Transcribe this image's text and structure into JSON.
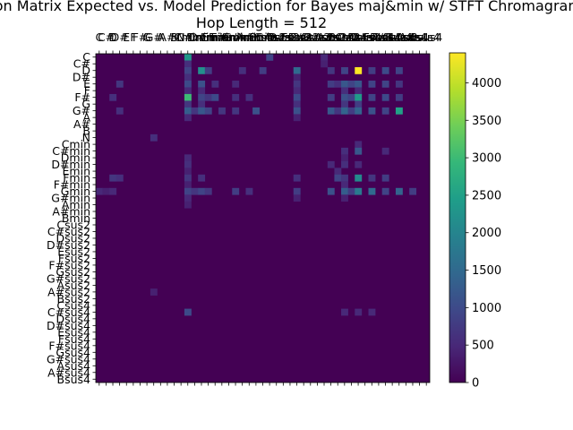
{
  "chart_data": {
    "type": "heatmap",
    "title_line1": "Confusion Matrix Expected vs. Model Prediction for Bayes maj&min w/ STFT Chromagram",
    "title_line2": "Hop Length = 512",
    "labels": [
      "C",
      "C#",
      "D",
      "D#",
      "E",
      "F",
      "F#",
      "G",
      "G#",
      "A",
      "A#",
      "B",
      "N",
      "Cmin",
      "C#min",
      "Dmin",
      "D#min",
      "Emin",
      "Fmin",
      "F#min",
      "Gmin",
      "G#min",
      "Amin",
      "A#min",
      "Bmin",
      "Csus2",
      "C#sus2",
      "Dsus2",
      "D#sus2",
      "Esus2",
      "Fsus2",
      "F#sus2",
      "Gsus2",
      "G#sus2",
      "Asus2",
      "A#sus2",
      "Bsus2",
      "Csus4",
      "C#sus4",
      "Dsus4",
      "D#sus4",
      "Esus4",
      "Fsus4",
      "F#sus4",
      "Gsus4",
      "G#sus4",
      "Asus4",
      "A#sus4",
      "Bsus4"
    ],
    "colorbar": {
      "min": 0,
      "max": 4400,
      "ticks": [
        0,
        500,
        1000,
        1500,
        2000,
        2500,
        3000,
        3500,
        4000
      ]
    },
    "colormap": [
      "#440154",
      "#482878",
      "#3e4989",
      "#31688e",
      "#26828e",
      "#1f9e89",
      "#35b779",
      "#6ece58",
      "#b5de2b",
      "#fde725"
    ],
    "cells": [
      {
        "r": 0,
        "c": 13,
        "v": 2300
      },
      {
        "r": 0,
        "c": 25,
        "v": 900
      },
      {
        "r": 0,
        "c": 33,
        "v": 500
      },
      {
        "r": 1,
        "c": 13,
        "v": 600
      },
      {
        "r": 1,
        "c": 33,
        "v": 400
      },
      {
        "r": 2,
        "c": 13,
        "v": 900
      },
      {
        "r": 2,
        "c": 15,
        "v": 2200
      },
      {
        "r": 2,
        "c": 16,
        "v": 800
      },
      {
        "r": 2,
        "c": 21,
        "v": 600
      },
      {
        "r": 2,
        "c": 24,
        "v": 800
      },
      {
        "r": 2,
        "c": 29,
        "v": 1500
      },
      {
        "r": 2,
        "c": 34,
        "v": 700
      },
      {
        "r": 2,
        "c": 36,
        "v": 900
      },
      {
        "r": 2,
        "c": 38,
        "v": 4400
      },
      {
        "r": 2,
        "c": 40,
        "v": 800
      },
      {
        "r": 2,
        "c": 42,
        "v": 1000
      },
      {
        "r": 2,
        "c": 44,
        "v": 900
      },
      {
        "r": 3,
        "c": 13,
        "v": 600
      },
      {
        "r": 3,
        "c": 29,
        "v": 400
      },
      {
        "r": 4,
        "c": 3,
        "v": 700
      },
      {
        "r": 4,
        "c": 13,
        "v": 1000
      },
      {
        "r": 4,
        "c": 15,
        "v": 1100
      },
      {
        "r": 4,
        "c": 17,
        "v": 600
      },
      {
        "r": 4,
        "c": 20,
        "v": 500
      },
      {
        "r": 4,
        "c": 29,
        "v": 700
      },
      {
        "r": 4,
        "c": 34,
        "v": 800
      },
      {
        "r": 4,
        "c": 35,
        "v": 600
      },
      {
        "r": 4,
        "c": 36,
        "v": 1200
      },
      {
        "r": 4,
        "c": 37,
        "v": 900
      },
      {
        "r": 4,
        "c": 38,
        "v": 1200
      },
      {
        "r": 4,
        "c": 40,
        "v": 900
      },
      {
        "r": 4,
        "c": 42,
        "v": 900
      },
      {
        "r": 4,
        "c": 44,
        "v": 700
      },
      {
        "r": 5,
        "c": 13,
        "v": 500
      },
      {
        "r": 5,
        "c": 15,
        "v": 500
      },
      {
        "r": 5,
        "c": 29,
        "v": 500
      },
      {
        "r": 5,
        "c": 36,
        "v": 600
      },
      {
        "r": 5,
        "c": 38,
        "v": 500
      },
      {
        "r": 6,
        "c": 2,
        "v": 600
      },
      {
        "r": 6,
        "c": 13,
        "v": 3000
      },
      {
        "r": 6,
        "c": 15,
        "v": 900
      },
      {
        "r": 6,
        "c": 16,
        "v": 700
      },
      {
        "r": 6,
        "c": 17,
        "v": 1000
      },
      {
        "r": 6,
        "c": 20,
        "v": 600
      },
      {
        "r": 6,
        "c": 22,
        "v": 600
      },
      {
        "r": 6,
        "c": 29,
        "v": 1000
      },
      {
        "r": 6,
        "c": 34,
        "v": 800
      },
      {
        "r": 6,
        "c": 36,
        "v": 1100
      },
      {
        "r": 6,
        "c": 37,
        "v": 900
      },
      {
        "r": 6,
        "c": 38,
        "v": 2400
      },
      {
        "r": 6,
        "c": 40,
        "v": 900
      },
      {
        "r": 6,
        "c": 42,
        "v": 1000
      },
      {
        "r": 6,
        "c": 44,
        "v": 800
      },
      {
        "r": 7,
        "c": 13,
        "v": 700
      },
      {
        "r": 7,
        "c": 15,
        "v": 600
      },
      {
        "r": 7,
        "c": 29,
        "v": 600
      },
      {
        "r": 7,
        "c": 36,
        "v": 700
      },
      {
        "r": 7,
        "c": 38,
        "v": 800
      },
      {
        "r": 8,
        "c": 3,
        "v": 600
      },
      {
        "r": 8,
        "c": 13,
        "v": 1300
      },
      {
        "r": 8,
        "c": 14,
        "v": 700
      },
      {
        "r": 8,
        "c": 15,
        "v": 1200
      },
      {
        "r": 8,
        "c": 16,
        "v": 900
      },
      {
        "r": 8,
        "c": 18,
        "v": 700
      },
      {
        "r": 8,
        "c": 20,
        "v": 700
      },
      {
        "r": 8,
        "c": 23,
        "v": 1100
      },
      {
        "r": 8,
        "c": 29,
        "v": 1100
      },
      {
        "r": 8,
        "c": 34,
        "v": 1200
      },
      {
        "r": 8,
        "c": 35,
        "v": 700
      },
      {
        "r": 8,
        "c": 36,
        "v": 1400
      },
      {
        "r": 8,
        "c": 37,
        "v": 800
      },
      {
        "r": 8,
        "c": 38,
        "v": 1400
      },
      {
        "r": 8,
        "c": 40,
        "v": 1100
      },
      {
        "r": 8,
        "c": 42,
        "v": 900
      },
      {
        "r": 8,
        "c": 44,
        "v": 2500
      },
      {
        "r": 9,
        "c": 13,
        "v": 500
      },
      {
        "r": 9,
        "c": 29,
        "v": 400
      },
      {
        "r": 12,
        "c": 8,
        "v": 600
      },
      {
        "r": 13,
        "c": 38,
        "v": 500
      },
      {
        "r": 14,
        "c": 36,
        "v": 600
      },
      {
        "r": 14,
        "c": 38,
        "v": 1200
      },
      {
        "r": 14,
        "c": 42,
        "v": 500
      },
      {
        "r": 15,
        "c": 13,
        "v": 500
      },
      {
        "r": 15,
        "c": 36,
        "v": 400
      },
      {
        "r": 16,
        "c": 13,
        "v": 600
      },
      {
        "r": 16,
        "c": 34,
        "v": 500
      },
      {
        "r": 16,
        "c": 36,
        "v": 600
      },
      {
        "r": 16,
        "c": 38,
        "v": 500
      },
      {
        "r": 17,
        "c": 13,
        "v": 400
      },
      {
        "r": 17,
        "c": 35,
        "v": 500
      },
      {
        "r": 18,
        "c": 2,
        "v": 700
      },
      {
        "r": 18,
        "c": 3,
        "v": 600
      },
      {
        "r": 18,
        "c": 13,
        "v": 700
      },
      {
        "r": 18,
        "c": 15,
        "v": 600
      },
      {
        "r": 18,
        "c": 29,
        "v": 600
      },
      {
        "r": 18,
        "c": 35,
        "v": 900
      },
      {
        "r": 18,
        "c": 36,
        "v": 700
      },
      {
        "r": 18,
        "c": 38,
        "v": 2100
      },
      {
        "r": 18,
        "c": 40,
        "v": 700
      },
      {
        "r": 18,
        "c": 42,
        "v": 800
      },
      {
        "r": 19,
        "c": 13,
        "v": 400
      },
      {
        "r": 19,
        "c": 36,
        "v": 500
      },
      {
        "r": 20,
        "c": 0,
        "v": 500
      },
      {
        "r": 20,
        "c": 1,
        "v": 400
      },
      {
        "r": 20,
        "c": 2,
        "v": 500
      },
      {
        "r": 20,
        "c": 13,
        "v": 900
      },
      {
        "r": 20,
        "c": 14,
        "v": 700
      },
      {
        "r": 20,
        "c": 15,
        "v": 900
      },
      {
        "r": 20,
        "c": 16,
        "v": 700
      },
      {
        "r": 20,
        "c": 20,
        "v": 800
      },
      {
        "r": 20,
        "c": 22,
        "v": 600
      },
      {
        "r": 20,
        "c": 29,
        "v": 800
      },
      {
        "r": 20,
        "c": 34,
        "v": 1100
      },
      {
        "r": 20,
        "c": 36,
        "v": 1300
      },
      {
        "r": 20,
        "c": 37,
        "v": 800
      },
      {
        "r": 20,
        "c": 38,
        "v": 1800
      },
      {
        "r": 20,
        "c": 40,
        "v": 1500
      },
      {
        "r": 20,
        "c": 42,
        "v": 900
      },
      {
        "r": 20,
        "c": 44,
        "v": 1400
      },
      {
        "r": 20,
        "c": 46,
        "v": 800
      },
      {
        "r": 21,
        "c": 13,
        "v": 500
      },
      {
        "r": 21,
        "c": 29,
        "v": 400
      },
      {
        "r": 21,
        "c": 36,
        "v": 400
      },
      {
        "r": 22,
        "c": 13,
        "v": 400
      },
      {
        "r": 35,
        "c": 8,
        "v": 400
      },
      {
        "r": 38,
        "c": 13,
        "v": 1000
      },
      {
        "r": 38,
        "c": 36,
        "v": 500
      },
      {
        "r": 38,
        "c": 38,
        "v": 500
      },
      {
        "r": 38,
        "c": 40,
        "v": 500
      }
    ]
  }
}
